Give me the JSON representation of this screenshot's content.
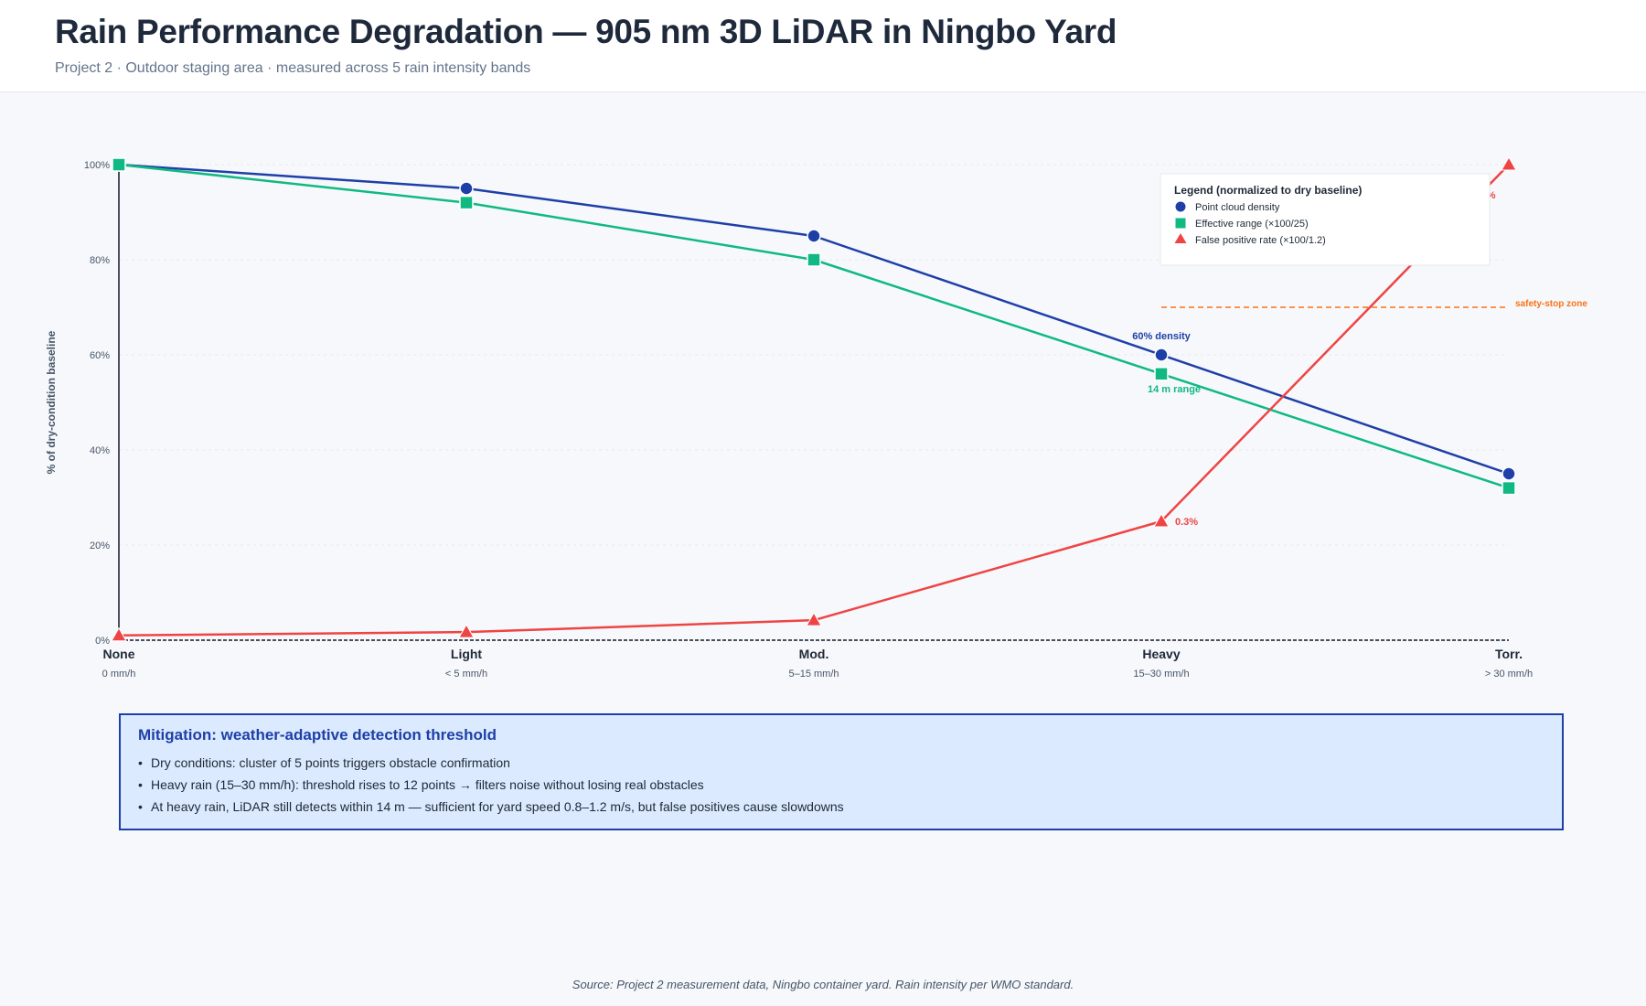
{
  "header": {
    "title": "Rain Performance Degradation — 905 nm 3D LiDAR in Ningbo Yard",
    "subtitle": "Project 2 · Outdoor staging area · measured across 5 rain intensity bands"
  },
  "chart_data": {
    "type": "line",
    "categories": [
      "None",
      "Light",
      "Mod.",
      "Heavy",
      "Torr."
    ],
    "category_sublabels": [
      "0 mm/h",
      "< 5 mm/h",
      "5–15 mm/h",
      "15–30 mm/h",
      "> 30 mm/h"
    ],
    "ylabel": "% of dry-condition baseline",
    "ylim": [
      0,
      100
    ],
    "yticks": [
      0,
      20,
      40,
      60,
      80,
      100
    ],
    "ytick_labels": [
      "0%",
      "20%",
      "40%",
      "60%",
      "80%",
      "100%"
    ],
    "grid": true,
    "legend_title": "Legend (normalized to dry baseline)",
    "legend_position": "top-right",
    "series": [
      {
        "name": "Point cloud density",
        "values": [
          100,
          95,
          85,
          60,
          35
        ],
        "color": "#1e3fa8",
        "marker": "circle"
      },
      {
        "name": "Effective range (×100/25)",
        "values": [
          100,
          92,
          80,
          56,
          32
        ],
        "color": "#10b981",
        "marker": "square"
      },
      {
        "name": "False positive rate (×100/1.2)",
        "values": [
          1,
          1.7,
          4.2,
          25,
          100
        ],
        "color": "#ef4444",
        "marker": "triangle"
      }
    ],
    "reference_line": {
      "value": 70,
      "label": "safety-stop zone",
      "color": "#f97316"
    },
    "annotations": [
      {
        "text": "60% density",
        "series": 0,
        "index": 3,
        "color": "#1e3fa8"
      },
      {
        "text": "14 m range",
        "series": 1,
        "index": 3,
        "color": "#10b981"
      },
      {
        "text": "0.3%",
        "series": 2,
        "index": 3,
        "color": "#ef4444"
      },
      {
        "text": "1.2%",
        "series": 2,
        "index": 4,
        "color": "#ef4444"
      }
    ]
  },
  "mitigation": {
    "title": "Mitigation: weather-adaptive detection threshold",
    "items": [
      "Dry conditions: cluster of 5 points triggers obstacle confirmation",
      "Heavy rain (15–30 mm/h): threshold rises to 12 points → filters noise without losing real obstacles",
      "At heavy rain, LiDAR still detects within 14 m — sufficient for yard speed 0.8–1.2 m/s, but false positives cause slowdowns"
    ]
  },
  "source": "Source: Project 2 measurement data, Ningbo container yard. Rain intensity per WMO standard."
}
